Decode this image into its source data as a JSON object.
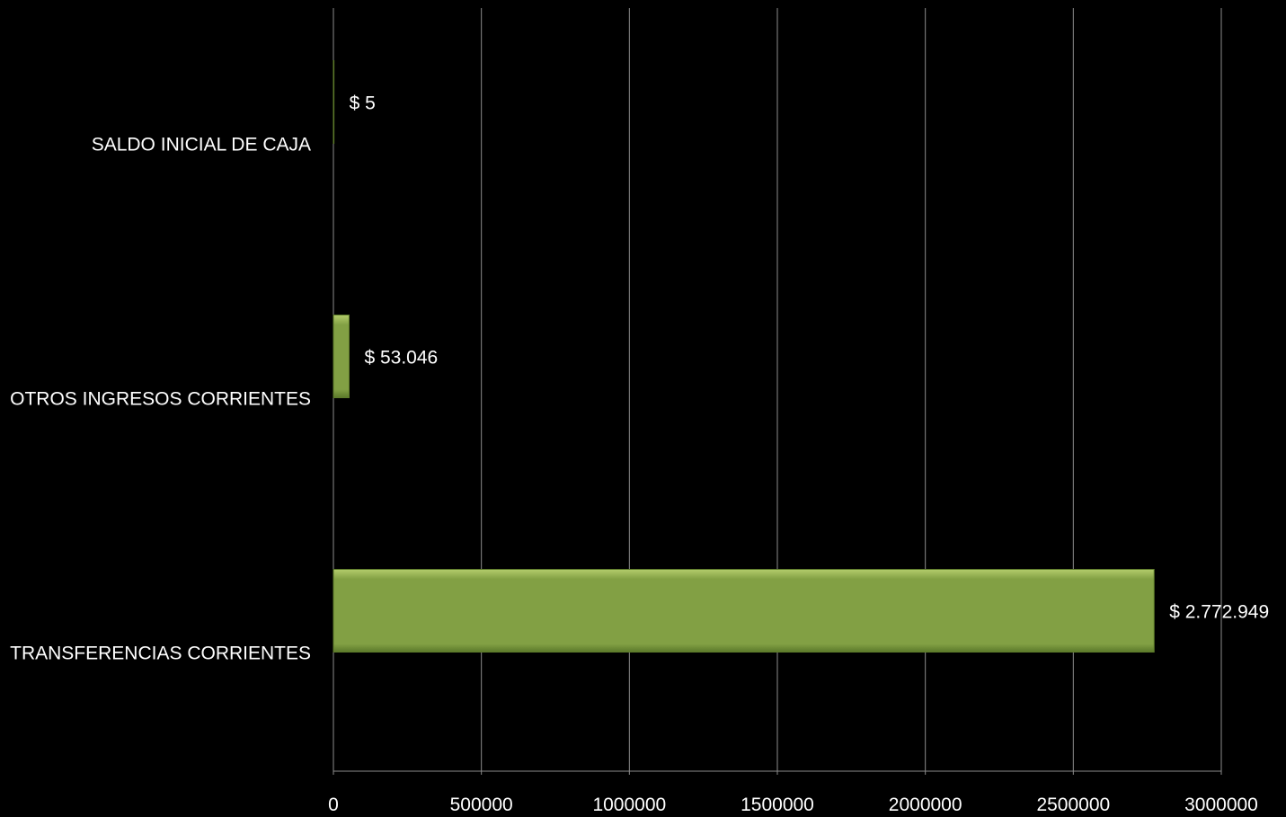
{
  "chart_data": {
    "type": "bar",
    "orientation": "horizontal",
    "categories": [
      "TRANSFERENCIAS CORRIENTES",
      "OTROS INGRESOS CORRIENTES",
      "SALDO INICIAL DE CAJA"
    ],
    "values": [
      2772949,
      53046,
      5
    ],
    "data_labels": [
      "$ 2.772.949",
      "$ 53.046",
      "$ 5"
    ],
    "xlim": [
      0,
      3000000
    ],
    "x_ticks": [
      0,
      500000,
      1000000,
      1500000,
      2000000,
      2500000,
      3000000
    ],
    "x_tick_labels": [
      "0",
      "500000",
      "1000000",
      "1500000",
      "2000000",
      "2500000",
      "3000000"
    ],
    "title": "",
    "xlabel": "",
    "ylabel": "",
    "grid": "vertical",
    "legend": "none",
    "colors": {
      "background": "#000000",
      "bar_fill": "#82a044",
      "bar_highlight": "#b3cc6b",
      "bar_shadow": "#5c7a2a",
      "gridline": "#8c8c8c",
      "text": "#ffffff"
    }
  }
}
